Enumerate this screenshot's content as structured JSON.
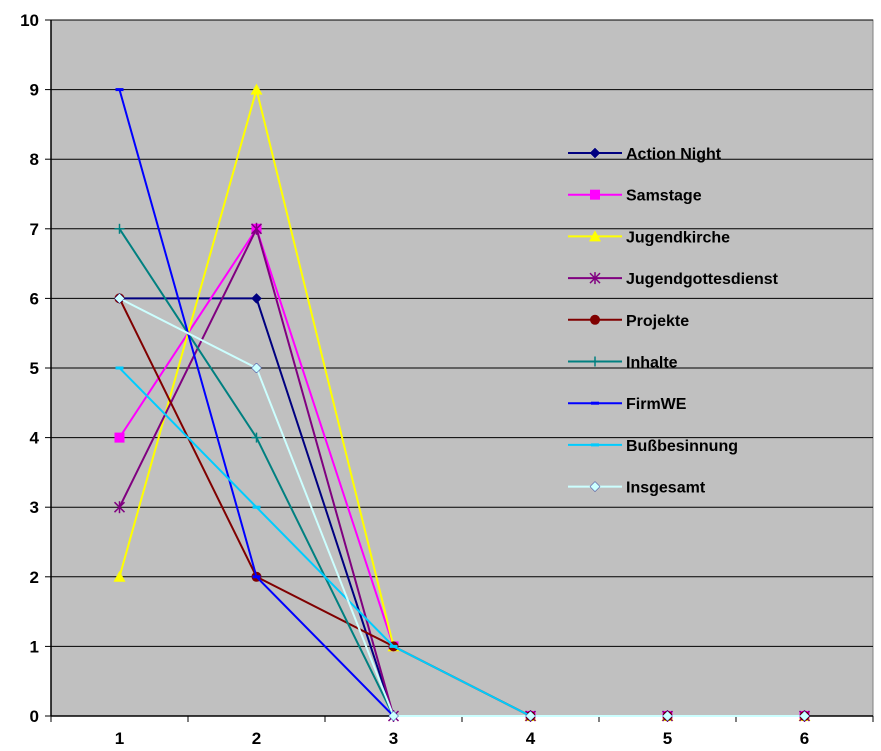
{
  "chart_data": {
    "type": "line",
    "title": "",
    "xlabel": "",
    "ylabel": "",
    "x": [
      "1",
      "2",
      "3",
      "4",
      "5",
      "6"
    ],
    "ylim": [
      0,
      10
    ],
    "yticks": [
      "0",
      "1",
      "2",
      "3",
      "4",
      "5",
      "6",
      "7",
      "8",
      "9",
      "10"
    ],
    "grid": true,
    "legend_position": "right",
    "plot_background": "#c0c0c0",
    "series": [
      {
        "name": "Action Night",
        "values": [
          6,
          6,
          0,
          0,
          0,
          0
        ],
        "color": "#000080",
        "marker": "diamond"
      },
      {
        "name": "Samstage",
        "values": [
          4,
          7,
          1,
          0,
          0,
          0
        ],
        "color": "#ff00ff",
        "marker": "square"
      },
      {
        "name": "Jugendkirche",
        "values": [
          2,
          9,
          1,
          0,
          0,
          0
        ],
        "color": "#ffff00",
        "marker": "triangle"
      },
      {
        "name": "Jugendgottesdienst",
        "values": [
          3,
          7,
          0,
          0,
          0,
          0
        ],
        "color": "#800080",
        "marker": "star"
      },
      {
        "name": "Projekte",
        "values": [
          6,
          2,
          1,
          0,
          0,
          0
        ],
        "color": "#800000",
        "marker": "circle"
      },
      {
        "name": "Inhalte",
        "values": [
          7,
          4,
          0,
          0,
          0,
          0
        ],
        "color": "#008080",
        "marker": "plus"
      },
      {
        "name": "FirmWE",
        "values": [
          9,
          2,
          0,
          0,
          0,
          0
        ],
        "color": "#0000ff",
        "marker": "dash"
      },
      {
        "name": "Bußbesinnung",
        "values": [
          5,
          3,
          1,
          0,
          0,
          0
        ],
        "color": "#00ccff",
        "marker": "dash"
      },
      {
        "name": "Insgesamt",
        "values": [
          6,
          5,
          0,
          0,
          0,
          0
        ],
        "color": "#ccffff",
        "marker": "diamond"
      }
    ]
  }
}
